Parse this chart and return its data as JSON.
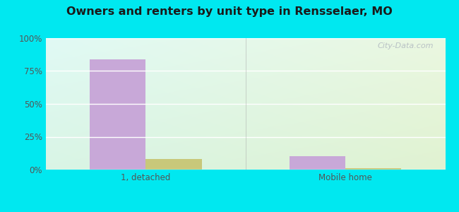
{
  "title": "Owners and renters by unit type in Rensselaer, MO",
  "categories": [
    "1, detached",
    "Mobile home"
  ],
  "owner_values": [
    84,
    10
  ],
  "renter_values": [
    8,
    1
  ],
  "owner_color": "#c8a8d8",
  "renter_color": "#c8c87a",
  "yticks": [
    0,
    25,
    50,
    75,
    100
  ],
  "ylim": [
    0,
    100
  ],
  "bar_width": 0.28,
  "outer_bg": "#00e8f0",
  "watermark": "City-Data.com",
  "grad_topleft": [
    0.88,
    0.98,
    0.96
  ],
  "grad_topright": [
    0.92,
    0.97,
    0.88
  ],
  "grad_botleft": [
    0.85,
    0.96,
    0.9
  ],
  "grad_botright": [
    0.88,
    0.95,
    0.82
  ]
}
